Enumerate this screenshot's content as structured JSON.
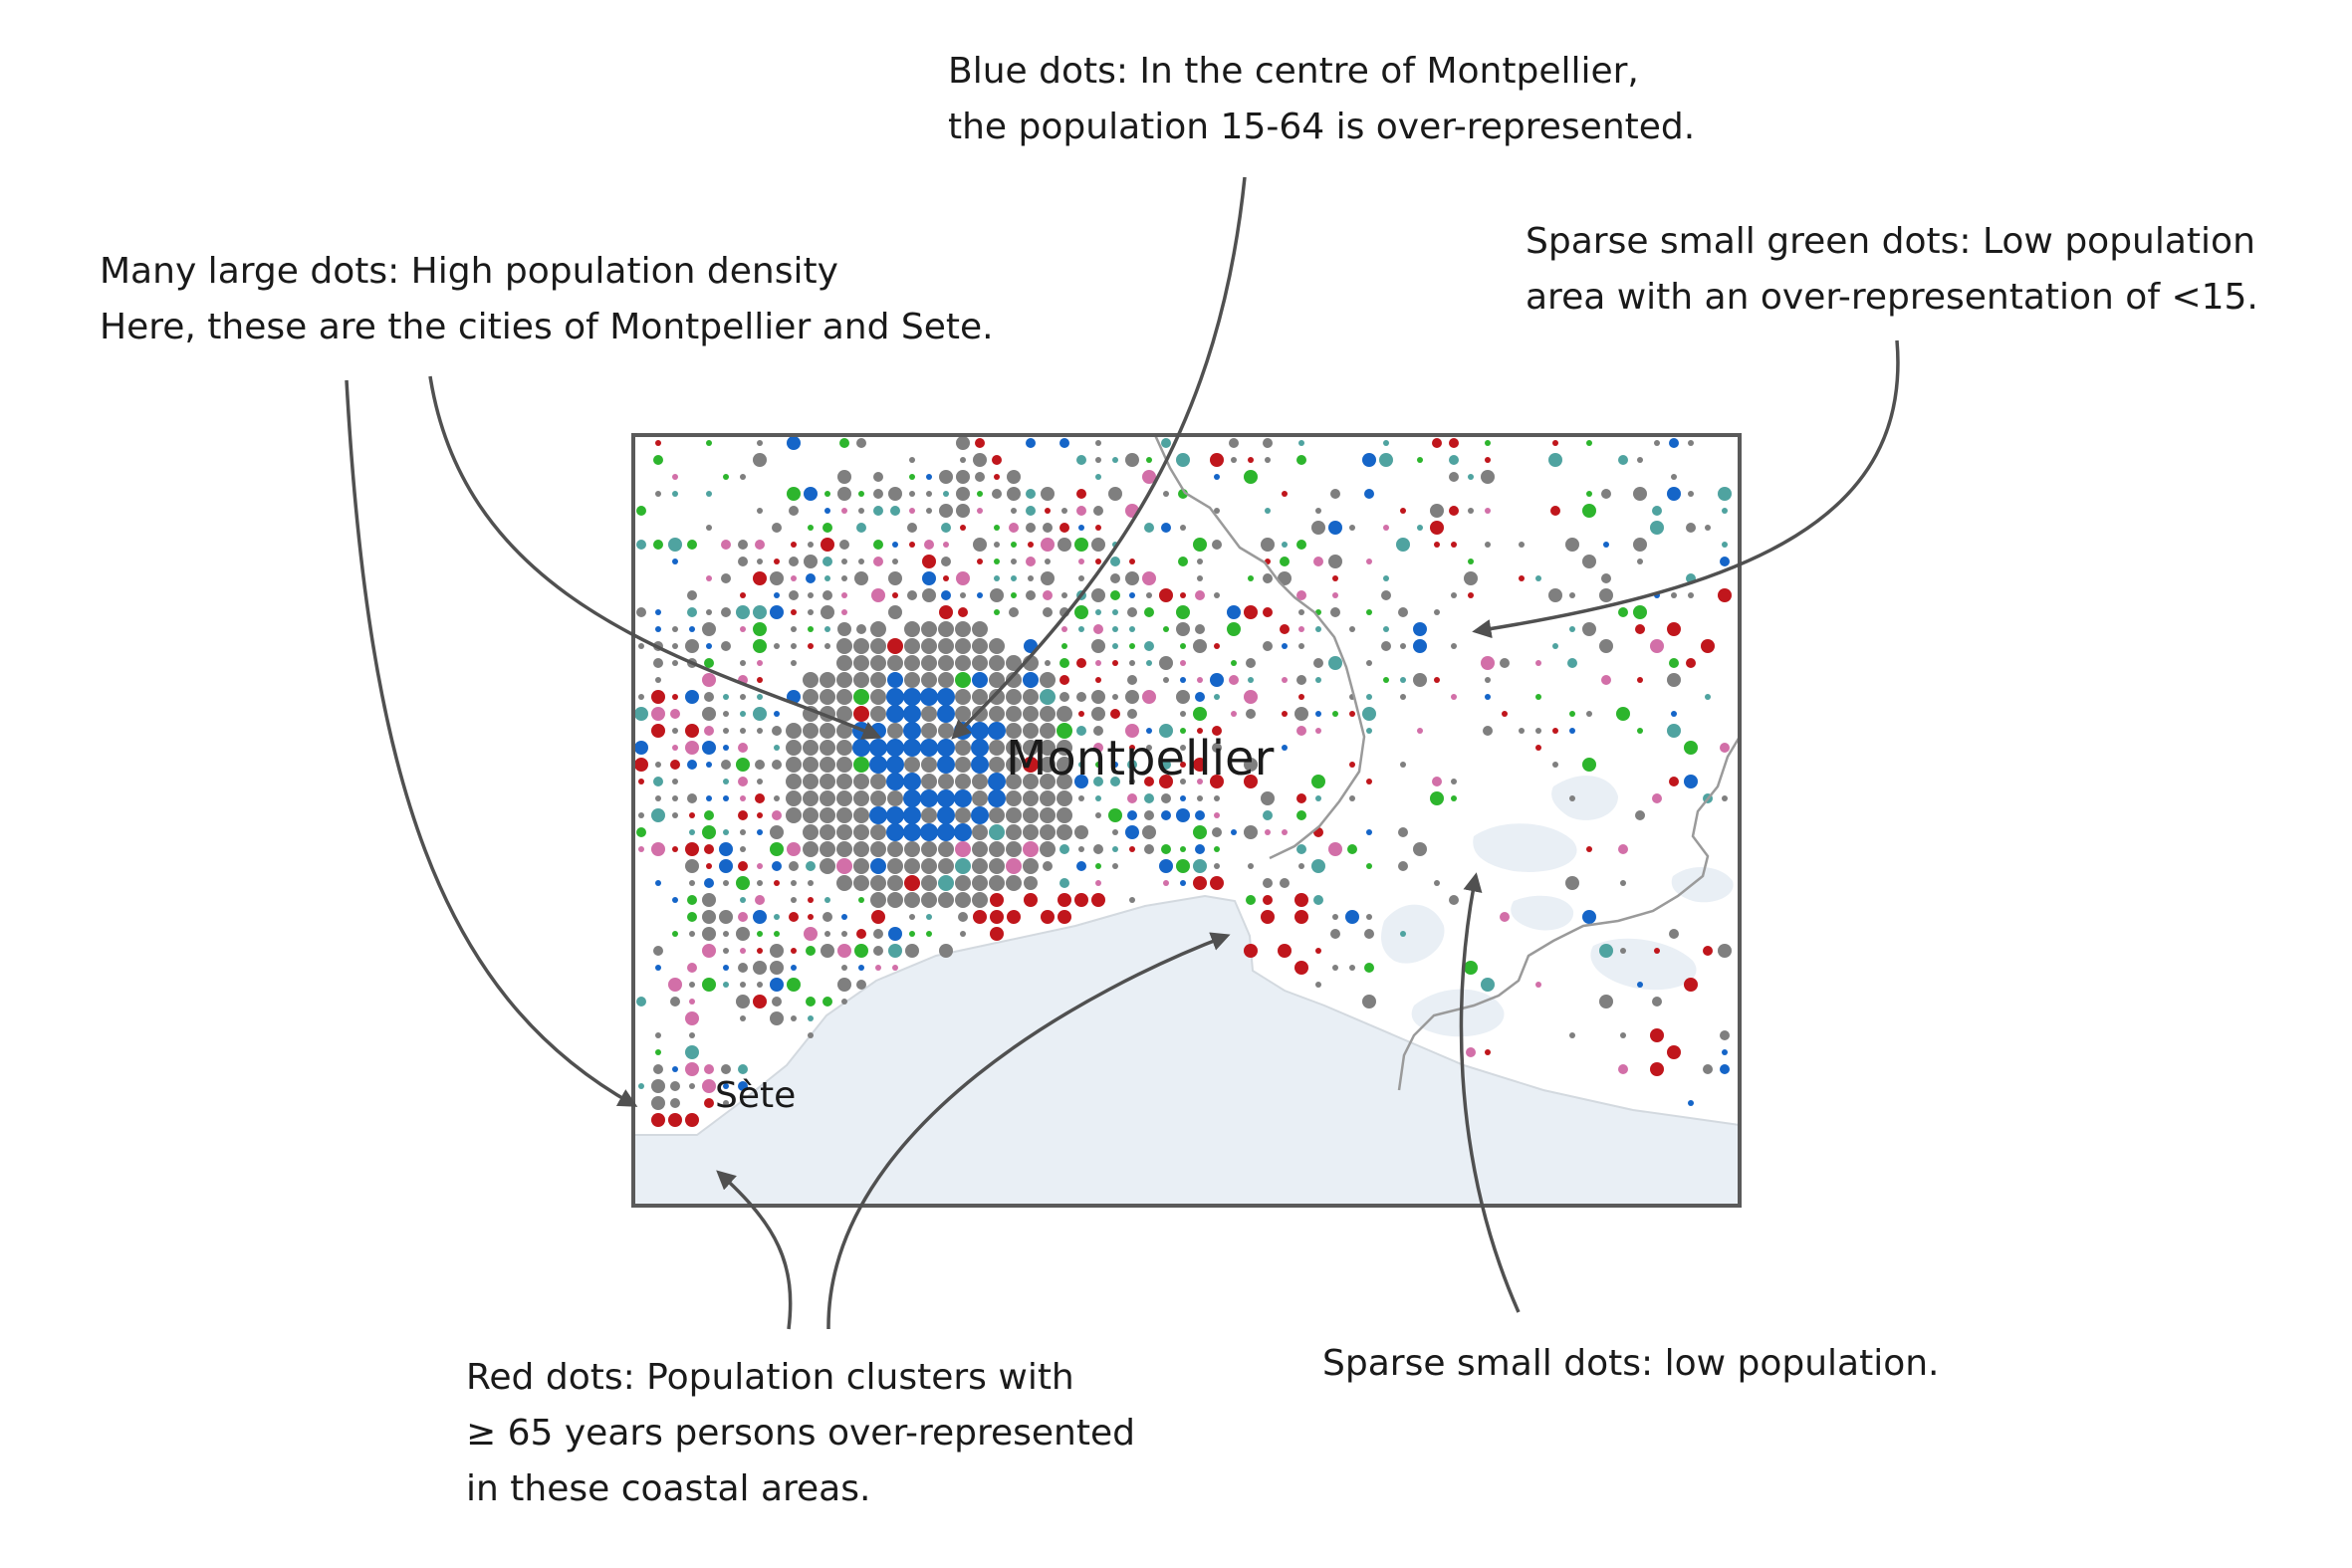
{
  "annotations": {
    "blue_dots": [
      "Blue dots: In the centre of Montpellier,",
      "the population 15-64 is over-represented."
    ],
    "large_dots": [
      "Many large dots: High population density",
      "Here, these are the cities of Montpellier and Sete."
    ],
    "green_dots": [
      "Sparse small green dots: Low population",
      "area with an over-representation of <15."
    ],
    "red_dots": [
      "Red dots: Population clusters with",
      "≥ 65 years persons over-represented",
      "in these coastal areas."
    ],
    "sparse_dots": [
      "Sparse small dots: low population."
    ]
  },
  "map": {
    "city_labels": {
      "montpellier": "Montpellier",
      "sete": "Sète"
    },
    "colors": {
      "over_65": "#c0161c",
      "age_15_64": "#1565c8",
      "under_15": "#2db52d",
      "neutral": "#7f7f7f",
      "teal": "#4fa3a0",
      "pink": "#d26fa8",
      "sea": "#e9eff5",
      "land": "#ffffff",
      "frame": "#5a5a5a",
      "boundary": "#9a9a9a",
      "arrow": "#505050"
    }
  }
}
